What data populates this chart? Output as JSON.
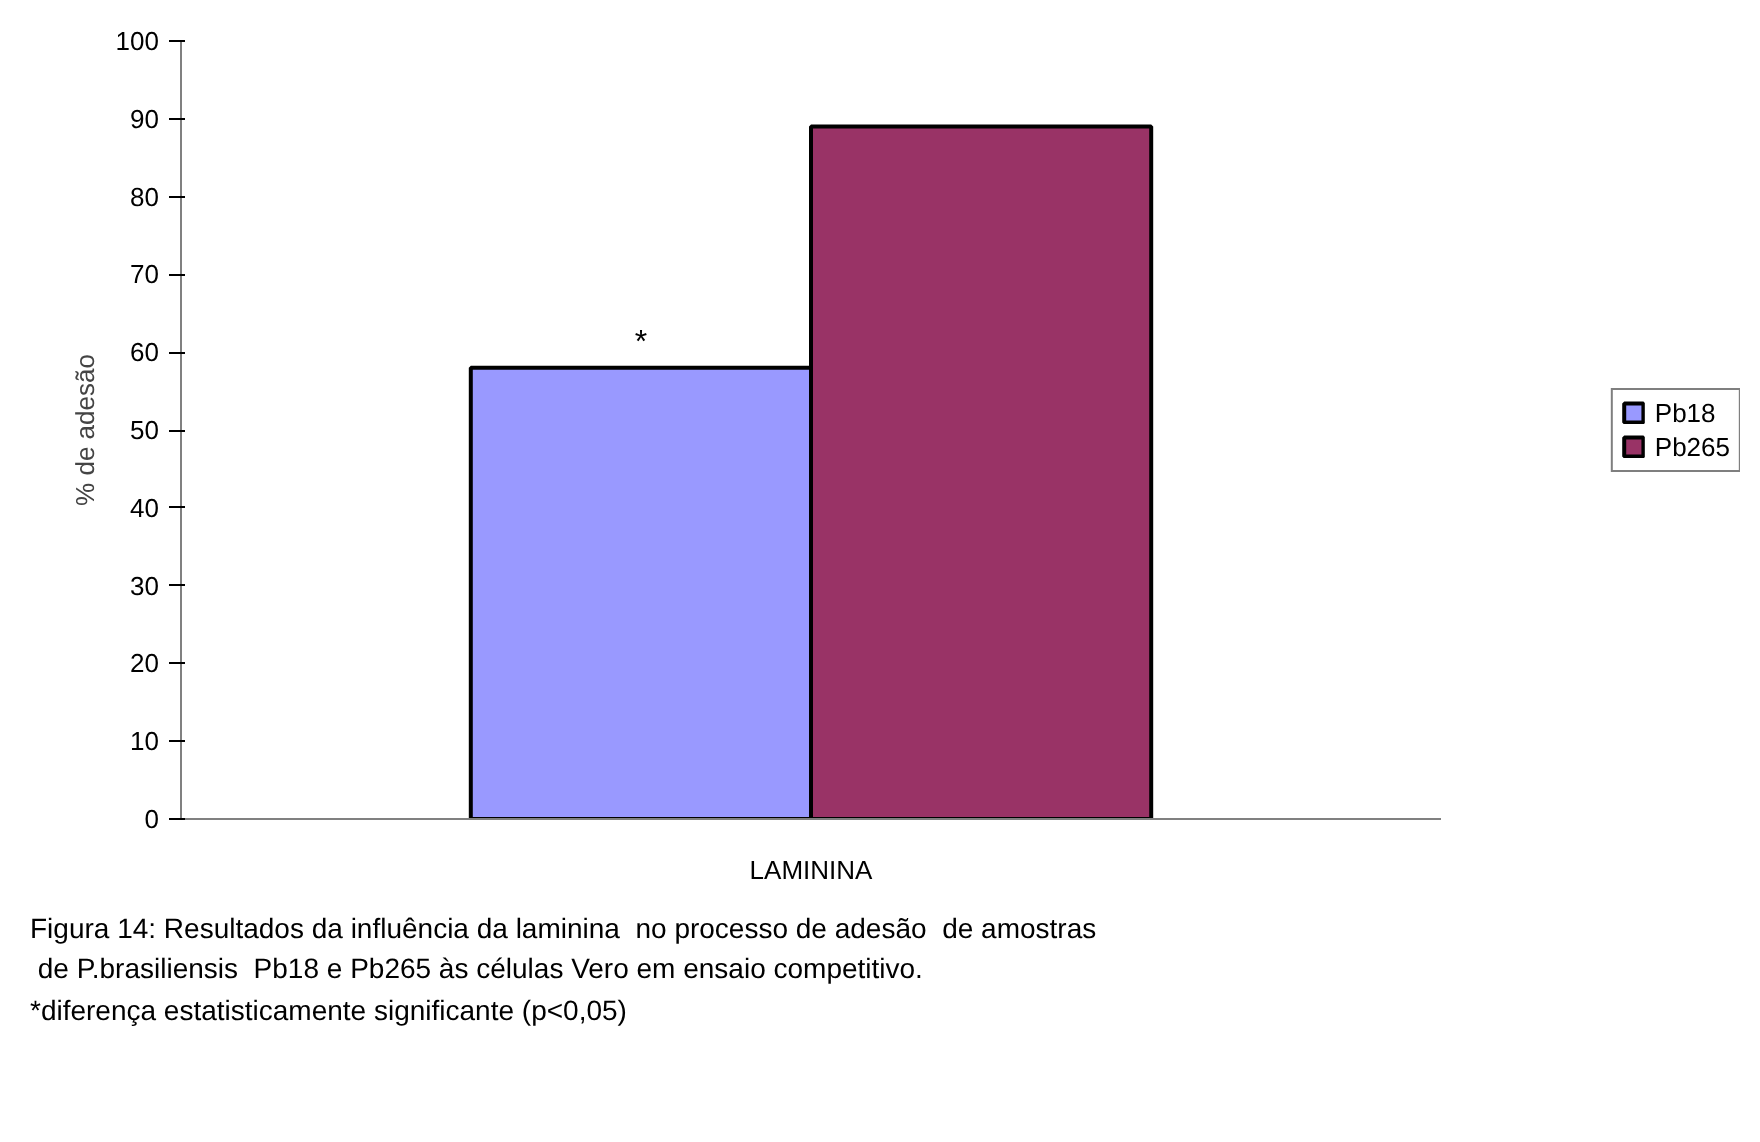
{
  "chart_data": {
    "type": "bar",
    "categories": [
      "LAMININA"
    ],
    "ylabel": "% de adesão",
    "series": [
      {
        "name": "Pb18",
        "color": "#9999ff",
        "values": [
          58
        ]
      },
      {
        "name": "Pb265",
        "color": "#993366",
        "values": [
          89
        ]
      }
    ],
    "ylim": [
      0,
      100
    ],
    "yticks": [
      0,
      10,
      20,
      30,
      40,
      50,
      60,
      70,
      80,
      90,
      100
    ],
    "grid": false,
    "legend": "right",
    "annotations": [
      "*",
      "Figura 14: Resultados da influência da laminina  no processo de adesão  de amostras",
      " de P.brasiliensis  Pb18 e Pb265 às células Vero em ensaio competitivo.",
      "*diferença estatisticamente significante (p<0,05)"
    ]
  }
}
